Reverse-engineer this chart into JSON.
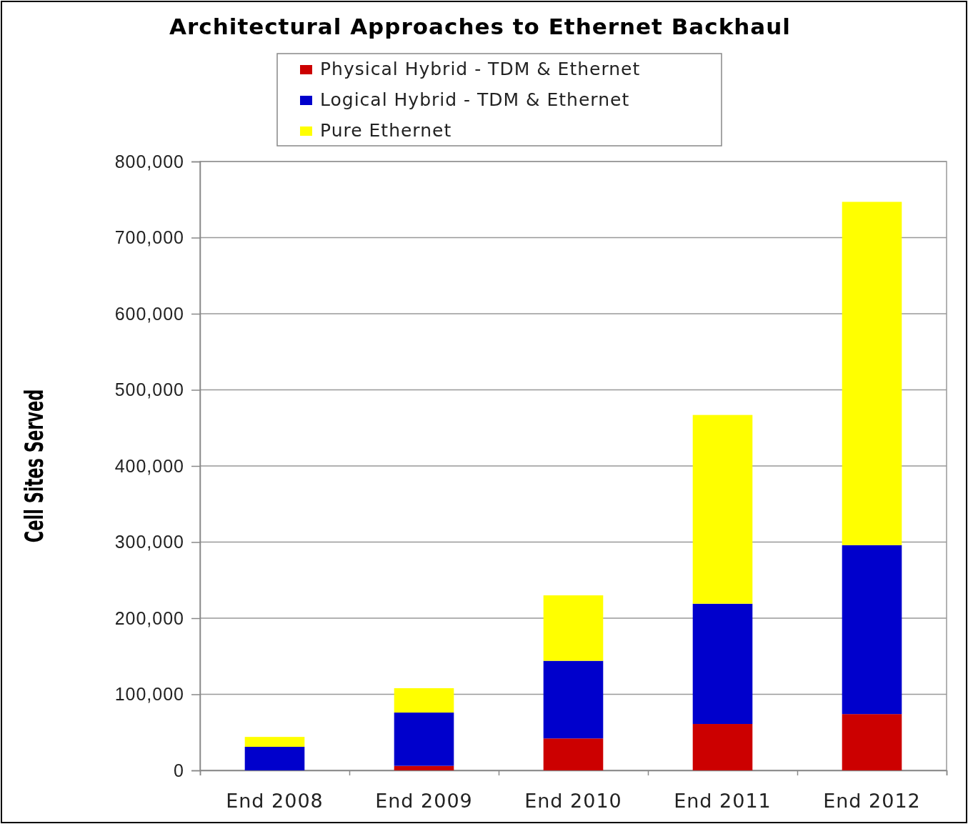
{
  "chart_data": {
    "type": "bar",
    "title": "Architectural Approaches to Ethernet Backhaul",
    "ylabel": "Cell Sites Served",
    "categories": [
      "End 2008",
      "End 2009",
      "End 2010",
      "End 2011",
      "End 2012"
    ],
    "series": [
      {
        "name": "Physical Hybrid - TDM & Ethernet",
        "color": "#cc0000",
        "values": [
          0,
          6000,
          42000,
          61000,
          74000
        ]
      },
      {
        "name": "Logical Hybrid - TDM & Ethernet",
        "color": "#0000cc",
        "values": [
          31000,
          70000,
          102000,
          158000,
          222000
        ]
      },
      {
        "name": "Pure Ethernet",
        "color": "#ffff00",
        "values": [
          13000,
          32000,
          86000,
          248000,
          451000
        ]
      }
    ],
    "stacked": true,
    "ylim": [
      0,
      800000
    ],
    "yticks": [
      {
        "value": 0,
        "label": "0"
      },
      {
        "value": 100000,
        "label": "100,000"
      },
      {
        "value": 200000,
        "label": "200,000"
      },
      {
        "value": 300000,
        "label": "300,000"
      },
      {
        "value": 400000,
        "label": "400,000"
      },
      {
        "value": 500000,
        "label": "500,000"
      },
      {
        "value": 600000,
        "label": "600,000"
      },
      {
        "value": 700000,
        "label": "700,000"
      },
      {
        "value": 800000,
        "label": "800,000"
      }
    ],
    "grid": "y",
    "legend": "top"
  }
}
